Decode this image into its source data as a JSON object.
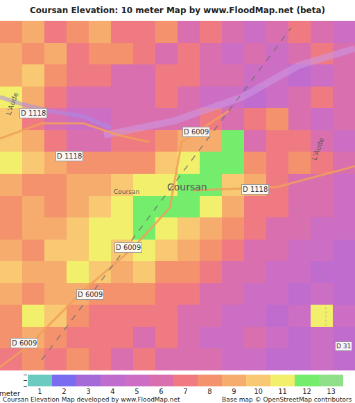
{
  "chart_data": {
    "type": "heatmap",
    "title": "Coursan Elevation: 10 meter Map by www.FloodMap.net (beta)",
    "tick_labels": false,
    "cells": [
      [
        8,
        9,
        7,
        8,
        9,
        7,
        7,
        8,
        6,
        7,
        6,
        5,
        6,
        7,
        6,
        5
      ],
      [
        9,
        8,
        9,
        7,
        8,
        8,
        7,
        6,
        7,
        6,
        5,
        6,
        5,
        6,
        7,
        6
      ],
      [
        9,
        10,
        8,
        7,
        7,
        6,
        6,
        7,
        7,
        6,
        6,
        5,
        5,
        4,
        5,
        6
      ],
      [
        11,
        9,
        7,
        6,
        6,
        6,
        6,
        7,
        6,
        5,
        5,
        4,
        5,
        6,
        7,
        6
      ],
      [
        10,
        7,
        6,
        5,
        5,
        6,
        6,
        6,
        6,
        7,
        6,
        7,
        8,
        6,
        5,
        6
      ],
      [
        10,
        9,
        7,
        6,
        6,
        7,
        7,
        8,
        9,
        9,
        12,
        6,
        7,
        7,
        6,
        5
      ],
      [
        11,
        10,
        9,
        8,
        8,
        8,
        8,
        10,
        11,
        12,
        12,
        8,
        7,
        8,
        7,
        6
      ],
      [
        9,
        8,
        8,
        9,
        9,
        10,
        11,
        11,
        12,
        12,
        10,
        9,
        7,
        6,
        6,
        5
      ],
      [
        8,
        9,
        8,
        9,
        10,
        11,
        12,
        12,
        12,
        11,
        9,
        7,
        7,
        6,
        6,
        5
      ],
      [
        8,
        9,
        9,
        10,
        11,
        11,
        12,
        11,
        10,
        9,
        8,
        7,
        6,
        6,
        5,
        5
      ],
      [
        9,
        8,
        10,
        10,
        11,
        10,
        11,
        10,
        9,
        8,
        7,
        6,
        6,
        5,
        5,
        4
      ],
      [
        10,
        9,
        9,
        11,
        10,
        9,
        10,
        8,
        8,
        7,
        6,
        6,
        5,
        5,
        4,
        4
      ],
      [
        9,
        8,
        9,
        9,
        8,
        8,
        8,
        7,
        7,
        6,
        6,
        5,
        5,
        4,
        5,
        4
      ],
      [
        8,
        11,
        10,
        8,
        7,
        7,
        7,
        7,
        6,
        6,
        5,
        5,
        4,
        5,
        11,
        5
      ],
      [
        8,
        9,
        8,
        7,
        7,
        7,
        6,
        7,
        6,
        5,
        5,
        6,
        5,
        4,
        5,
        4
      ],
      [
        7,
        8,
        7,
        8,
        7,
        6,
        7,
        6,
        6,
        6,
        5,
        5,
        4,
        4,
        5,
        4
      ]
    ],
    "zlim": [
      0.5,
      13.5
    ],
    "zticks": [
      1,
      2,
      3,
      4,
      5,
      6,
      7,
      8,
      9,
      10,
      11,
      12,
      13
    ],
    "colorbar_title": "meter",
    "colors": [
      "#6ccbc0",
      "#7a6cf0",
      "#a66ad8",
      "#bf6cce",
      "#cc6ec4",
      "#d96fae",
      "#f07a82",
      "#f4926e",
      "#f6ac6c",
      "#f8c872",
      "#f2ef6c",
      "#74ec6c",
      "#8fe088"
    ],
    "annotations": [
      "D 1118",
      "D 1118",
      "D 6009",
      "L'Aude",
      "L'Aude",
      "Coursan",
      "Coursan",
      "D 1118",
      "D 6009",
      "D 6009",
      "D 6009",
      "D 31"
    ],
    "footer": [
      "Coursan Elevation Map developed by www.FloodMap.net",
      "Base map © OpenStreetMap contributors"
    ]
  }
}
